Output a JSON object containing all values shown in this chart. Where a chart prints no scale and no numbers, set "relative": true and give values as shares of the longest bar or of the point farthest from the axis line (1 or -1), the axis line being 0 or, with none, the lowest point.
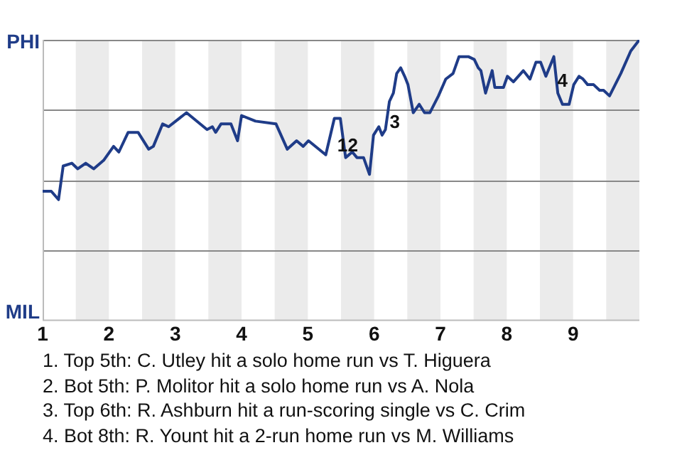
{
  "chart_data": {
    "type": "line",
    "relative": true,
    "x": [
      1,
      1.13,
      1.24,
      1.31,
      1.44,
      1.53,
      1.65,
      1.77,
      1.92,
      2.07,
      2.15,
      2.29,
      2.44,
      2.6,
      2.67,
      2.81,
      2.9,
      3.17,
      3.48,
      3.56,
      3.61,
      3.69,
      3.84,
      3.94,
      4,
      4.21,
      4.52,
      4.69,
      4.83,
      4.93,
      5.01,
      5.27,
      5.4,
      5.49,
      5.57,
      5.67,
      5.74,
      5.84,
      5.93,
      5.99,
      6.07,
      6.12,
      6.17,
      6.23,
      6.29,
      6.34,
      6.4,
      6.46,
      6.51,
      6.59,
      6.68,
      6.76,
      6.84,
      6.97,
      7.08,
      7.19,
      7.28,
      7.42,
      7.51,
      7.57,
      7.61,
      7.68,
      7.78,
      7.82,
      7.95,
      8.01,
      8.1,
      8.25,
      8.35,
      8.44,
      8.51,
      8.59,
      8.71,
      8.77,
      8.84,
      8.94,
      9.01,
      9.09,
      9.15,
      9.22,
      9.31,
      9.4,
      9.46,
      9.55,
      9.72,
      9.87,
      10
    ],
    "series": [
      {
        "color": "#1f3c88",
        "values": [
          0.46,
          0.46,
          0.43,
          0.55,
          0.56,
          0.54,
          0.56,
          0.54,
          0.57,
          0.62,
          0.6,
          0.67,
          0.67,
          0.61,
          0.62,
          0.7,
          0.69,
          0.74,
          0.68,
          0.69,
          0.67,
          0.7,
          0.7,
          0.64,
          0.73,
          0.71,
          0.7,
          0.61,
          0.64,
          0.62,
          0.64,
          0.59,
          0.72,
          0.72,
          0.58,
          0.6,
          0.58,
          0.58,
          0.52,
          0.66,
          0.69,
          0.66,
          0.68,
          0.78,
          0.81,
          0.88,
          0.9,
          0.87,
          0.84,
          0.74,
          0.77,
          0.74,
          0.74,
          0.8,
          0.86,
          0.88,
          0.94,
          0.94,
          0.93,
          0.9,
          0.89,
          0.81,
          0.89,
          0.83,
          0.83,
          0.87,
          0.85,
          0.89,
          0.86,
          0.92,
          0.92,
          0.87,
          0.94,
          0.81,
          0.77,
          0.77,
          0.84,
          0.87,
          0.86,
          0.84,
          0.84,
          0.82,
          0.82,
          0.8,
          0.88,
          0.96,
          1
        ]
      }
    ],
    "xlim": [
      1,
      10
    ],
    "xticks": [
      1,
      2,
      3,
      4,
      5,
      6,
      7,
      8,
      9
    ],
    "bands": [
      {
        "axis": "x",
        "from": 1.5,
        "to": 2,
        "color": "#ebebeb"
      },
      {
        "axis": "x",
        "from": 2.5,
        "to": 3,
        "color": "#ebebeb"
      },
      {
        "axis": "x",
        "from": 3.5,
        "to": 4,
        "color": "#ebebeb"
      },
      {
        "axis": "x",
        "from": 4.5,
        "to": 5,
        "color": "#ebebeb"
      },
      {
        "axis": "x",
        "from": 5.5,
        "to": 6,
        "color": "#ebebeb"
      },
      {
        "axis": "x",
        "from": 6.5,
        "to": 7,
        "color": "#ebebeb"
      },
      {
        "axis": "x",
        "from": 7.5,
        "to": 8,
        "color": "#ebebeb"
      },
      {
        "axis": "x",
        "from": 8.5,
        "to": 9,
        "color": "#ebebeb"
      },
      {
        "axis": "x",
        "from": 9.5,
        "to": 10,
        "color": "#ebebeb"
      }
    ],
    "grid": "y",
    "legend": false,
    "marker": "none",
    "line_style": "solid",
    "annotations": [
      "PHI",
      "MIL",
      {
        "text": "1",
        "x": 5.52,
        "y": 0.62
      },
      {
        "text": "2",
        "x": 5.68,
        "y": 0.62
      },
      {
        "text": "3",
        "x": 6.31,
        "y": 0.705
      },
      {
        "text": "4",
        "x": 8.84,
        "y": 0.85
      },
      "1. Top 5th: C. Utley hit a solo home run vs T. Higuera",
      "2. Bot 5th: P. Molitor hit a solo home run vs A. Nola",
      "3. Top 6th: R. Ashburn hit a run-scoring single vs C. Crim",
      "4. Bot 8th: R. Yount hit a 2-run home run vs M. Williams"
    ]
  }
}
